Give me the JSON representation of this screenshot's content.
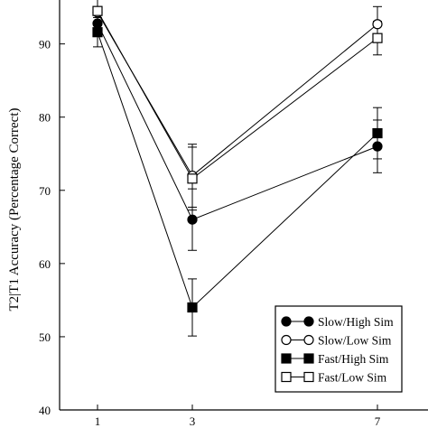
{
  "chart_data": {
    "type": "line",
    "title": "",
    "xlabel": "",
    "ylabel": "T2|T1 Accuracy (Percentage Correct)",
    "x": [
      1,
      3,
      7
    ],
    "x_tick_labels": [
      "1",
      "3",
      "7"
    ],
    "ylim": [
      40,
      96
    ],
    "y_ticks": [
      40,
      50,
      60,
      70,
      80,
      90
    ],
    "y_tick_labels": [
      "40",
      "50",
      "60",
      "70",
      "80",
      "90"
    ],
    "grid": false,
    "legend_position": "bottom-right",
    "series": [
      {
        "name": "Slow/High Sim",
        "marker": "circle",
        "fill": "filled",
        "values": [
          92.8,
          66.0,
          76.0
        ],
        "error": [
          1.6,
          4.2,
          3.6
        ]
      },
      {
        "name": "Slow/Low Sim",
        "marker": "circle",
        "fill": "open",
        "values": [
          94.3,
          72.0,
          92.7
        ],
        "error": [
          1.8,
          4.3,
          2.4
        ]
      },
      {
        "name": "Fast/High Sim",
        "marker": "square",
        "fill": "filled",
        "values": [
          91.6,
          54.0,
          77.8
        ],
        "error": [
          2.0,
          3.9,
          3.5
        ]
      },
      {
        "name": "Fast/Low Sim",
        "marker": "square",
        "fill": "open",
        "values": [
          94.5,
          71.6,
          90.8
        ],
        "error": [
          1.8,
          4.3,
          2.3
        ]
      }
    ]
  }
}
